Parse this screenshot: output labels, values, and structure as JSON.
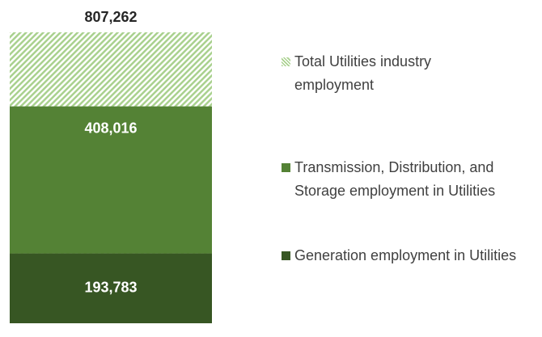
{
  "chart_data": {
    "type": "bar",
    "total": {
      "name": "Total Utilities industry employment",
      "value": 807262,
      "value_label": "807,262",
      "color": "#a9d18e"
    },
    "series": [
      {
        "name": "Generation employment in Utilities",
        "color": "#375623",
        "values": [
          193783
        ],
        "value_labels": [
          "193,783"
        ]
      },
      {
        "name": "Transmission, Distribution, and Storage employment in Utilities",
        "color": "#548235",
        "values": [
          408016
        ],
        "value_labels": [
          "408,016"
        ]
      }
    ]
  }
}
